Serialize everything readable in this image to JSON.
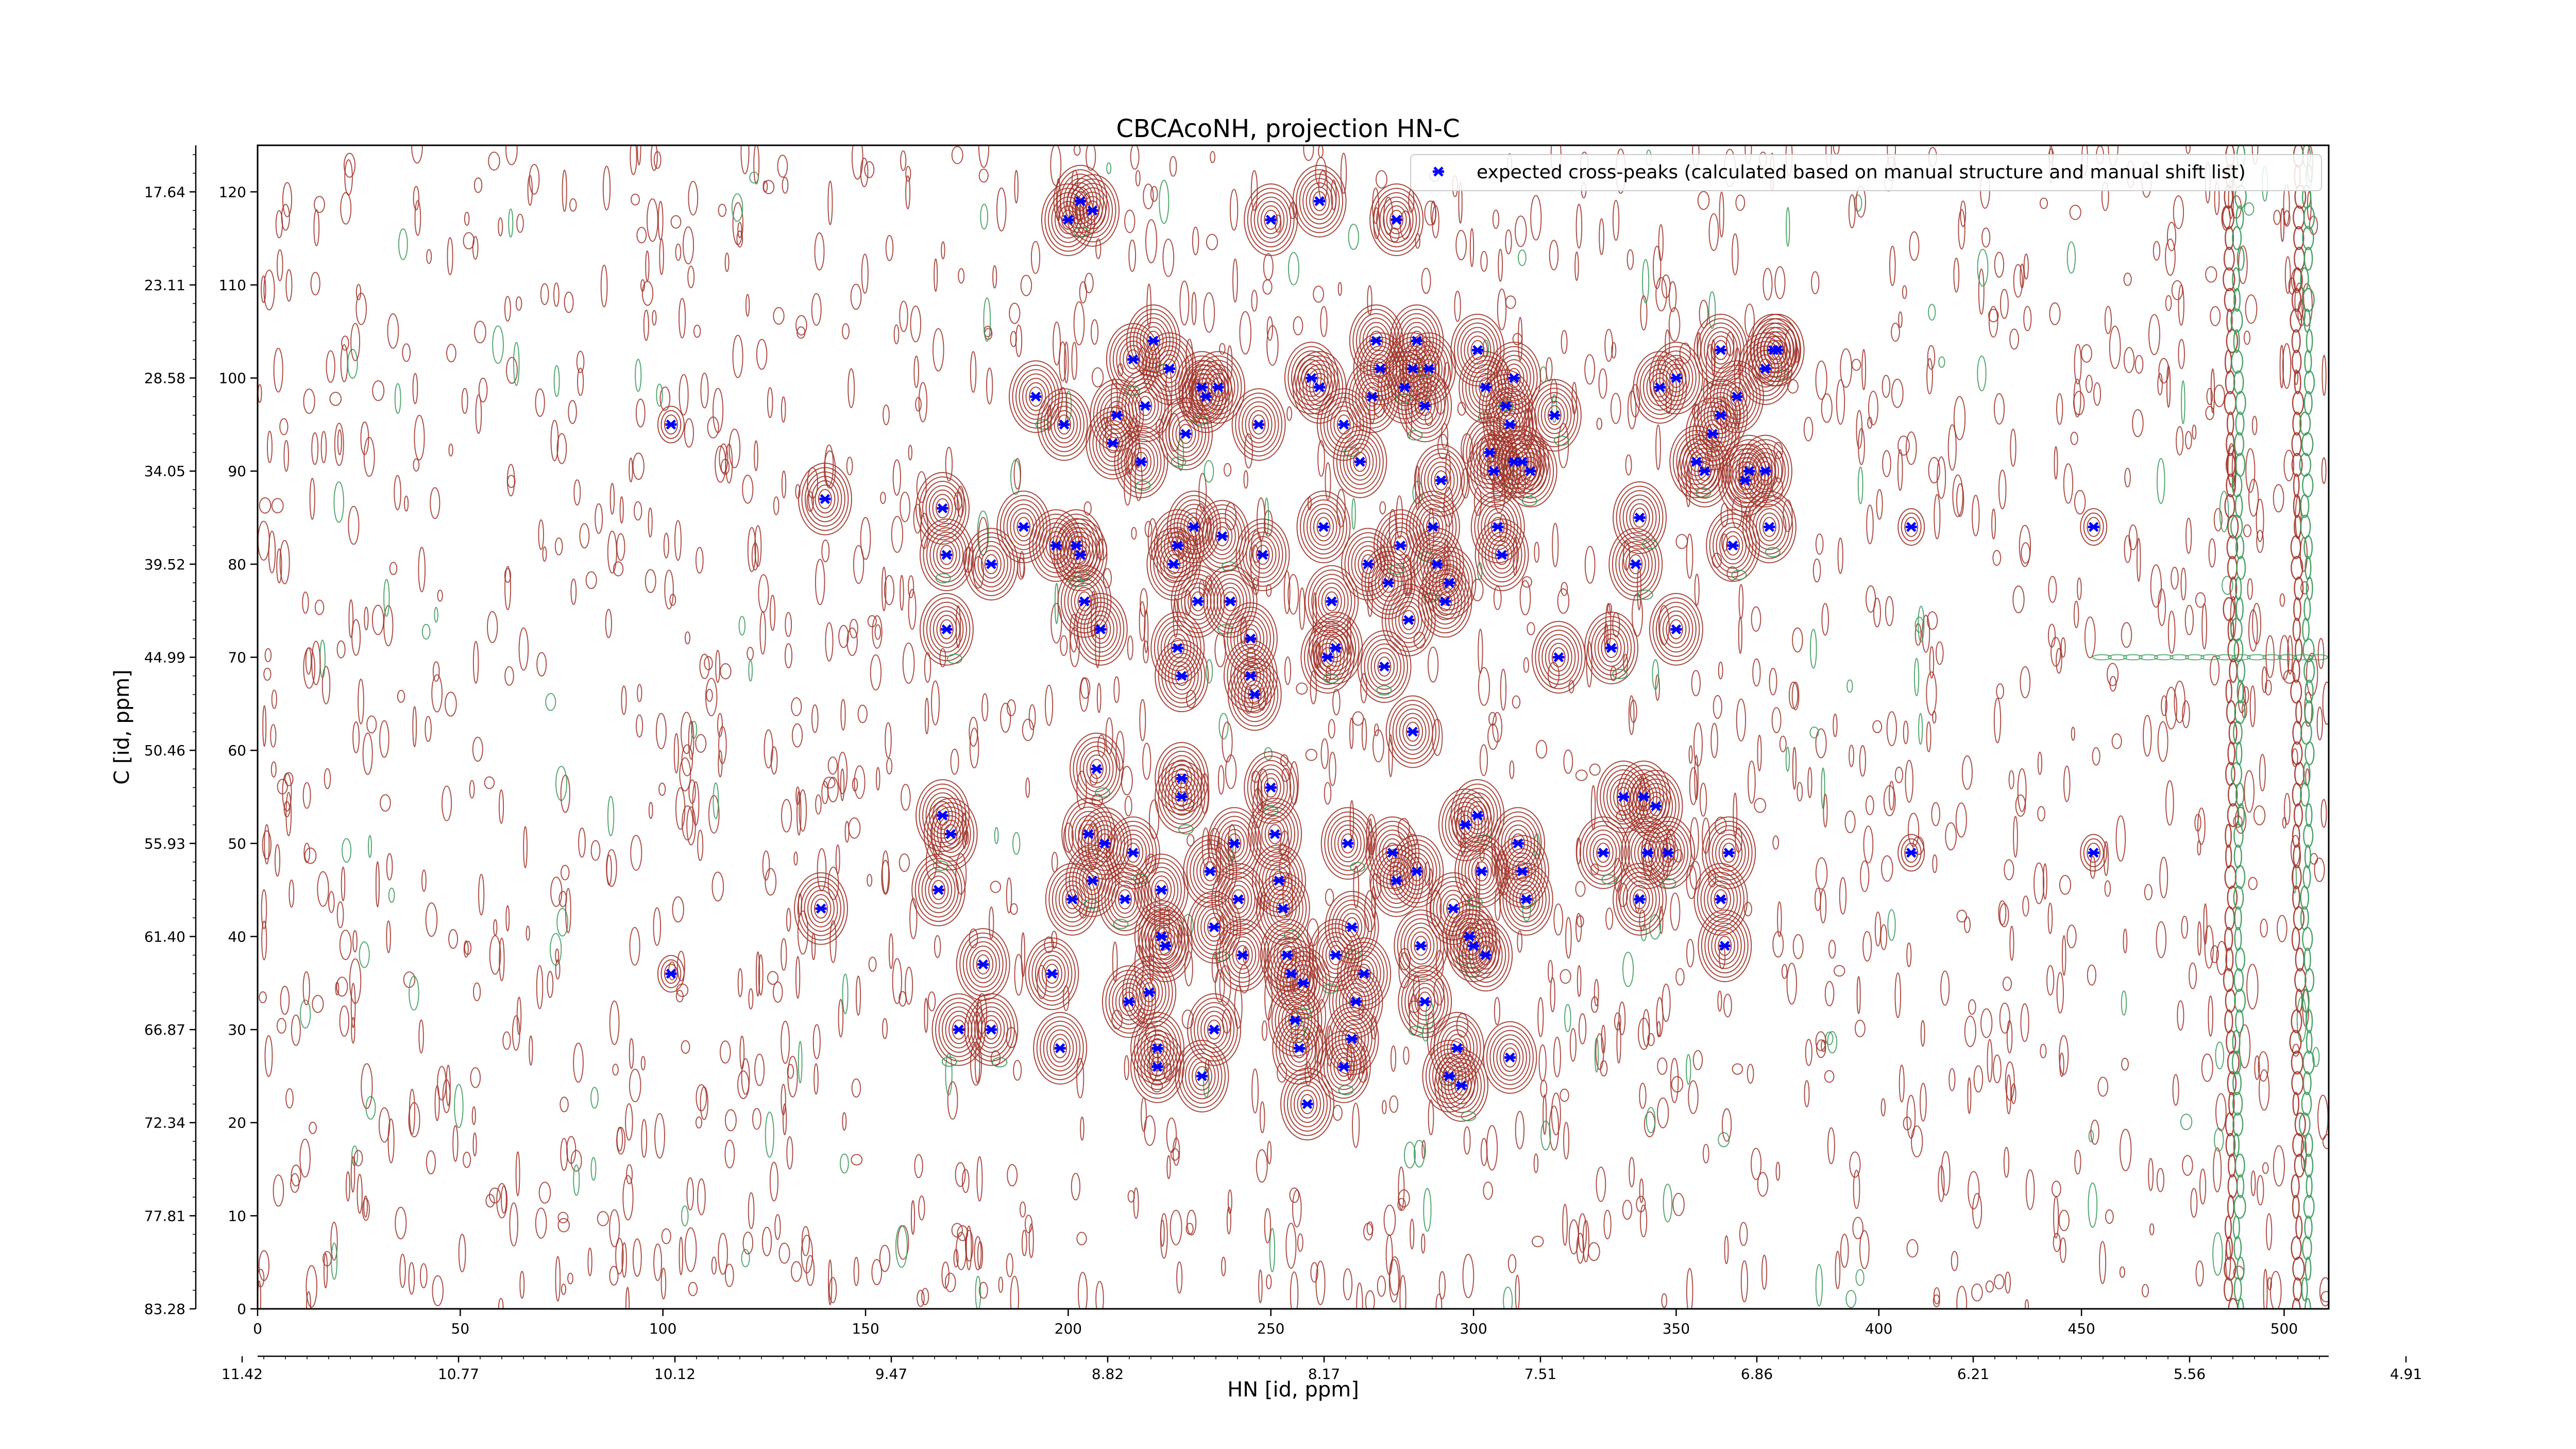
{
  "chart_data": {
    "type": "scatter",
    "title": "CBCAcoNH, projection HN-C",
    "xlabel": "HN [id, ppm]",
    "ylabel": "C [id, ppm]",
    "xlim": [
      0,
      511
    ],
    "ylim": [
      0,
      125
    ],
    "x_ticks_index": [
      "0",
      "50",
      "100",
      "150",
      "200",
      "250",
      "300",
      "350",
      "400",
      "450",
      "500"
    ],
    "x_ticks_ppm": [
      "11.42",
      "10.77",
      "10.12",
      "9.47",
      "8.82",
      "8.17",
      "7.51",
      "6.86",
      "6.21",
      "5.56",
      "4.91"
    ],
    "y_ticks_index": [
      "0",
      "10",
      "20",
      "30",
      "40",
      "50",
      "60",
      "70",
      "80",
      "90",
      "100",
      "110",
      "120"
    ],
    "y_ticks_ppm": [
      "83.28",
      "77.81",
      "72.34",
      "66.87",
      "61.40",
      "55.93",
      "50.46",
      "44.99",
      "39.52",
      "34.05",
      "28.58",
      "23.11",
      "17.64"
    ],
    "legend": {
      "label": "expected cross-peaks (calculated based on manual structure and manual shift list)",
      "placement": "top-right"
    },
    "colors": {
      "marker": "#0000ff",
      "contour_pos": "#a0342a",
      "contour_neg": "#3a9a5a"
    },
    "series": [
      {
        "name": "expected cross-peaks (calculated based on manual structure and manual shift list)",
        "points": [
          [
            102,
            95
          ],
          [
            140,
            87
          ],
          [
            139,
            43
          ],
          [
            102,
            36
          ],
          [
            169,
            86
          ],
          [
            170,
            81
          ],
          [
            170,
            73
          ],
          [
            169,
            53
          ],
          [
            171,
            51
          ],
          [
            168,
            45
          ],
          [
            179,
            37
          ],
          [
            173,
            30
          ],
          [
            181,
            30
          ],
          [
            181,
            80
          ],
          [
            189,
            84
          ],
          [
            192,
            98
          ],
          [
            199,
            95
          ],
          [
            196,
            36
          ],
          [
            198,
            28
          ],
          [
            197,
            82
          ],
          [
            202,
            82
          ],
          [
            201,
            44
          ],
          [
            200,
            117
          ],
          [
            203,
            119
          ],
          [
            206,
            118
          ],
          [
            203,
            81
          ],
          [
            204,
            76
          ],
          [
            205,
            51
          ],
          [
            206,
            46
          ],
          [
            207,
            58
          ],
          [
            208,
            73
          ],
          [
            209,
            50
          ],
          [
            211,
            93
          ],
          [
            212,
            96
          ],
          [
            214,
            44
          ],
          [
            215,
            33
          ],
          [
            216,
            49
          ],
          [
            218,
            91
          ],
          [
            219,
            97
          ],
          [
            221,
            104
          ],
          [
            216,
            102
          ],
          [
            220,
            34
          ],
          [
            222,
            28
          ],
          [
            222,
            26
          ],
          [
            223,
            45
          ],
          [
            223,
            40
          ],
          [
            224,
            39
          ],
          [
            225,
            101
          ],
          [
            226,
            80
          ],
          [
            227,
            82
          ],
          [
            227,
            71
          ],
          [
            228,
            68
          ],
          [
            228,
            57
          ],
          [
            228,
            55
          ],
          [
            229,
            94
          ],
          [
            231,
            84
          ],
          [
            232,
            76
          ],
          [
            233,
            99
          ],
          [
            234,
            98
          ],
          [
            235,
            47
          ],
          [
            236,
            41
          ],
          [
            236,
            30
          ],
          [
            237,
            99
          ],
          [
            238,
            83
          ],
          [
            240,
            76
          ],
          [
            241,
            50
          ],
          [
            242,
            44
          ],
          [
            243,
            38
          ],
          [
            245,
            68
          ],
          [
            245,
            72
          ],
          [
            246,
            66
          ],
          [
            247,
            95
          ],
          [
            248,
            81
          ],
          [
            250,
            56
          ],
          [
            251,
            51
          ],
          [
            252,
            46
          ],
          [
            253,
            43
          ],
          [
            254,
            38
          ],
          [
            255,
            36
          ],
          [
            256,
            31
          ],
          [
            257,
            28
          ],
          [
            258,
            35
          ],
          [
            259,
            22
          ],
          [
            260,
            100
          ],
          [
            262,
            99
          ],
          [
            263,
            84
          ],
          [
            264,
            70
          ],
          [
            265,
            76
          ],
          [
            266,
            71
          ],
          [
            268,
            95
          ],
          [
            269,
            50
          ],
          [
            270,
            41
          ],
          [
            271,
            33
          ],
          [
            272,
            91
          ],
          [
            273,
            36
          ],
          [
            274,
            80
          ],
          [
            275,
            98
          ],
          [
            276,
            104
          ],
          [
            277,
            101
          ],
          [
            278,
            69
          ],
          [
            279,
            78
          ],
          [
            280,
            49
          ],
          [
            281,
            46
          ],
          [
            282,
            82
          ],
          [
            283,
            99
          ],
          [
            284,
            74
          ],
          [
            285,
            62
          ],
          [
            286,
            47
          ],
          [
            287,
            39
          ],
          [
            288,
            33
          ],
          [
            289,
            101
          ],
          [
            290,
            84
          ],
          [
            291,
            80
          ],
          [
            292,
            89
          ],
          [
            293,
            76
          ],
          [
            294,
            78
          ],
          [
            295,
            43
          ],
          [
            296,
            28
          ],
          [
            297,
            24
          ],
          [
            298,
            52
          ],
          [
            299,
            40
          ],
          [
            300,
            39
          ],
          [
            301,
            53
          ],
          [
            302,
            47
          ],
          [
            303,
            38
          ],
          [
            304,
            92
          ],
          [
            305,
            90
          ],
          [
            306,
            84
          ],
          [
            307,
            81
          ],
          [
            308,
            97
          ],
          [
            309,
            95
          ],
          [
            310,
            91
          ],
          [
            311,
            50
          ],
          [
            312,
            47
          ],
          [
            313,
            44
          ],
          [
            286,
            104
          ],
          [
            285,
            101
          ],
          [
            288,
            97
          ],
          [
            301,
            103
          ],
          [
            303,
            99
          ],
          [
            310,
            100
          ],
          [
            312,
            91
          ],
          [
            314,
            90
          ],
          [
            320,
            96
          ],
          [
            321,
            70
          ],
          [
            332,
            49
          ],
          [
            334,
            71
          ],
          [
            341,
            44
          ],
          [
            343,
            49
          ],
          [
            345,
            54
          ],
          [
            340,
            80
          ],
          [
            341,
            85
          ],
          [
            346,
            99
          ],
          [
            350,
            100
          ],
          [
            355,
            91
          ],
          [
            357,
            90
          ],
          [
            359,
            94
          ],
          [
            361,
            44
          ],
          [
            362,
            39
          ],
          [
            363,
            49
          ],
          [
            364,
            82
          ],
          [
            365,
            98
          ],
          [
            367,
            89
          ],
          [
            368,
            90
          ],
          [
            372,
            90
          ],
          [
            374,
            103
          ],
          [
            375,
            103
          ],
          [
            373,
            84
          ],
          [
            372,
            101
          ],
          [
            361,
            103
          ],
          [
            361,
            96
          ],
          [
            350,
            73
          ],
          [
            348,
            49
          ],
          [
            337,
            55
          ],
          [
            342,
            55
          ],
          [
            408,
            84
          ],
          [
            408,
            49
          ],
          [
            453,
            84
          ],
          [
            453,
            49
          ],
          [
            250,
            117
          ],
          [
            262,
            119
          ],
          [
            281,
            117
          ],
          [
            294,
            25
          ],
          [
            309,
            27
          ],
          [
            233,
            25
          ],
          [
            266,
            38
          ],
          [
            270,
            29
          ],
          [
            268,
            26
          ]
        ]
      }
    ]
  }
}
